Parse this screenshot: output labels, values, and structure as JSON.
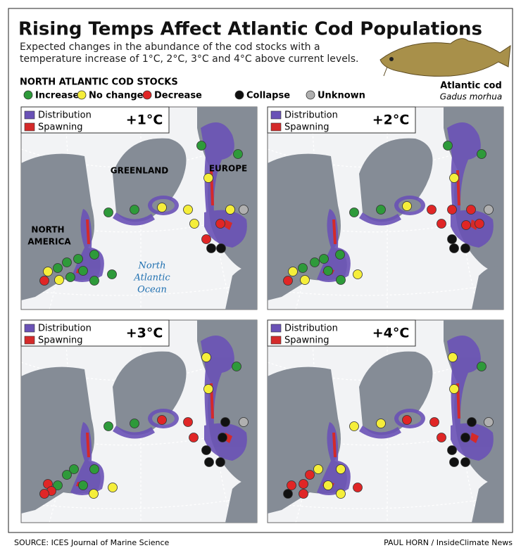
{
  "header": {
    "title": "Rising Temps Affect Atlantic Cod Populations",
    "subtitle": [
      "Expected changes in the abundance of the cod stocks with a",
      "temperature increase of 1°C, 2°C, 3°C and 4°C above current levels."
    ]
  },
  "species": {
    "common": "Atlantic cod",
    "scientific": "Gadus morhua"
  },
  "legend": {
    "title": "NORTH ATLANTIC COD STOCKS",
    "items": [
      "Increase",
      "No change",
      "Decrease",
      "Collapse",
      "Unknown"
    ]
  },
  "panels": [
    {
      "label": "+1°C",
      "distribution": "Distribution",
      "spawning": "Spawning"
    },
    {
      "label": "+2°C",
      "distribution": "Distribution",
      "spawning": "Spawning"
    },
    {
      "label": "+3°C",
      "distribution": "Distribution",
      "spawning": "Spawning"
    },
    {
      "label": "+4°C",
      "distribution": "Distribution",
      "spawning": "Spawning"
    }
  ],
  "map_labels": {
    "greenland": "GREENLAND",
    "europe": "EUROPE",
    "north_america": [
      "NORTH",
      "AMERICA"
    ],
    "ocean": [
      "North",
      "Atlantic",
      "Ocean"
    ]
  },
  "footer": {
    "source": "SOURCE: ICES Journal of Marine Science",
    "credit": "PAUL HORN / InsideClimate News"
  }
}
